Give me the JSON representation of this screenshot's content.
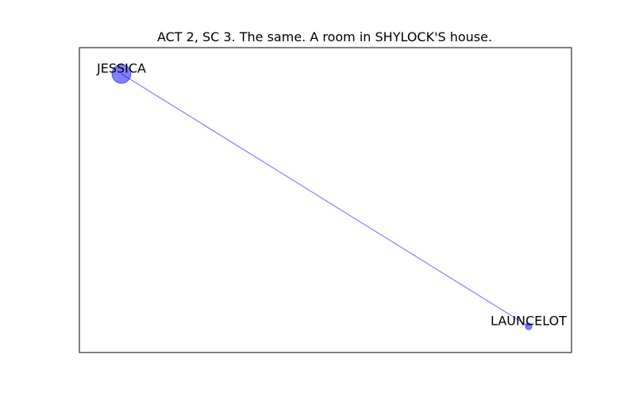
{
  "figure": {
    "title": "ACT 2, SC 3. The same. A room in SHYLOCK'S house."
  },
  "graph": {
    "node_color": "#0000ff",
    "edge_color": "#0000ff",
    "frame_color": "#000000",
    "nodes": [
      {
        "id": "jessica",
        "label": "JESSICA",
        "relative_size": 1.0
      },
      {
        "id": "launcelot",
        "label": "LAUNCELOT",
        "relative_size": 0.35
      }
    ],
    "edges": [
      {
        "source": "jessica",
        "target": "launcelot"
      }
    ]
  }
}
